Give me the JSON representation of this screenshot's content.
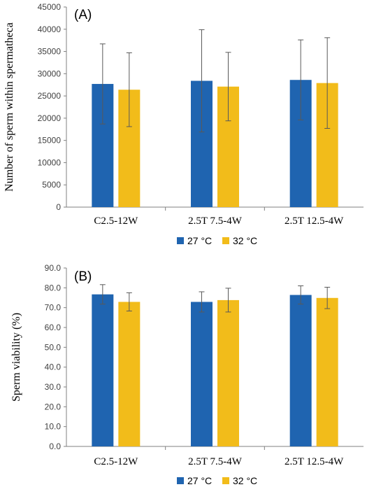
{
  "chart_data": [
    {
      "type": "bar",
      "panel_label": "(A)",
      "ylabel": "Number of sperm within spermatheca",
      "ylim": [
        0,
        45000
      ],
      "yticks": [
        "0",
        "5000",
        "10000",
        "15000",
        "20000",
        "25000",
        "30000",
        "35000",
        "40000",
        "45000"
      ],
      "categories": [
        "C2.5-12W",
        "2.5T 7.5-4W",
        "2.5T 12.5-4W"
      ],
      "series": [
        {
          "name": "27 °C",
          "color": "#1f64b0",
          "values": [
            27700,
            28400,
            28600
          ],
          "errors": [
            9000,
            11500,
            9000
          ]
        },
        {
          "name": "32 °C",
          "color": "#f2bc1a",
          "values": [
            26400,
            27100,
            27900
          ],
          "errors": [
            8300,
            7700,
            10200
          ]
        }
      ],
      "legend_position": "bottom"
    },
    {
      "type": "bar",
      "panel_label": "(B)",
      "ylabel": "Sperm viability (%)",
      "ylim": [
        0,
        90
      ],
      "yticks": [
        "0.0",
        "10.0",
        "20.0",
        "30.0",
        "40.0",
        "50.0",
        "60.0",
        "70.0",
        "80.0",
        "90.0"
      ],
      "categories": [
        "C2.5-12W",
        "2.5T 7.5-4W",
        "2.5T 12.5-4W"
      ],
      "series": [
        {
          "name": "27 °C",
          "color": "#1f64b0",
          "values": [
            76.7,
            72.9,
            76.4
          ],
          "errors": [
            4.9,
            5.1,
            4.6
          ]
        },
        {
          "name": "32 °C",
          "color": "#f2bc1a",
          "values": [
            72.9,
            73.8,
            74.9
          ],
          "errors": [
            4.6,
            6.0,
            5.4
          ]
        }
      ],
      "legend_position": "bottom"
    }
  ]
}
